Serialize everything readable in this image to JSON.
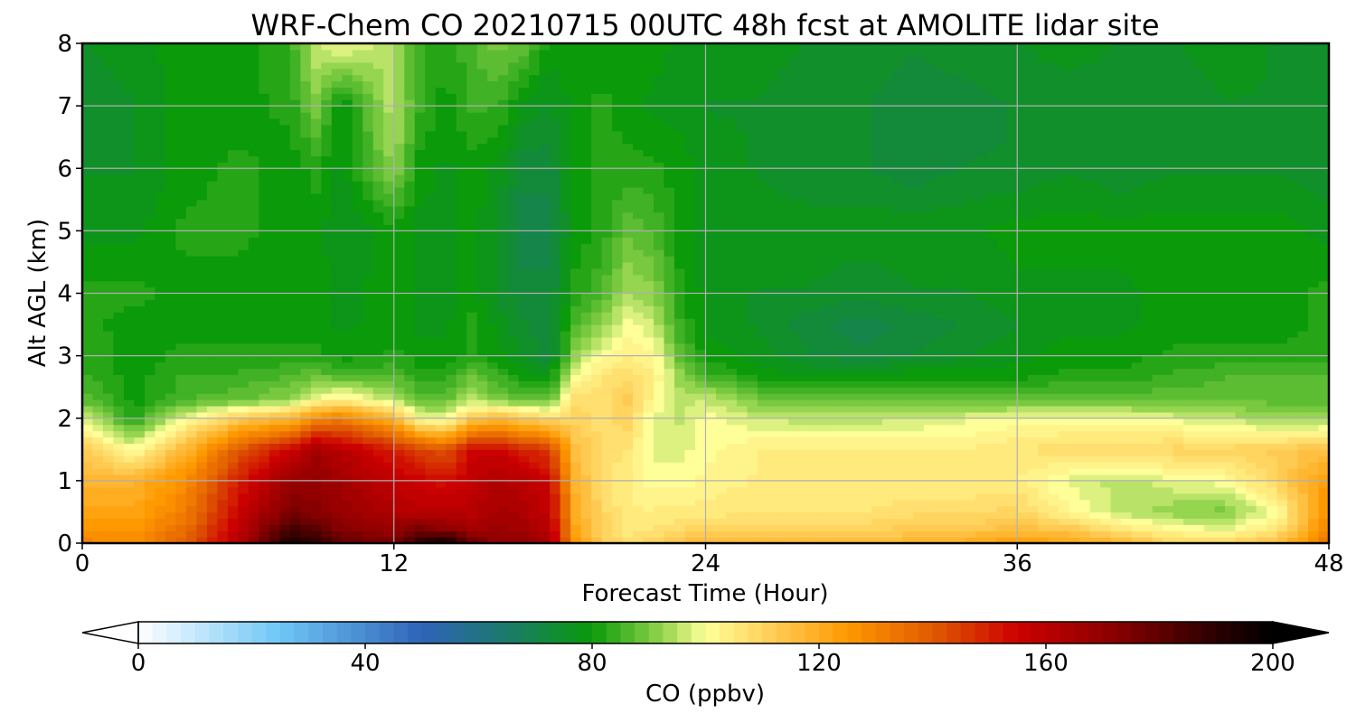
{
  "chart_data": {
    "type": "heatmap",
    "title": "WRF-Chem CO  20210715 00UTC 48h fcst at AMOLITE lidar site",
    "xlabel": "Forecast Time (Hour)",
    "ylabel": "Alt AGL (km)",
    "xlim": [
      0,
      48
    ],
    "ylim": [
      0,
      8
    ],
    "xticks": [
      0,
      12,
      24,
      36,
      48
    ],
    "yticks": [
      0,
      1,
      2,
      3,
      4,
      5,
      6,
      7,
      8
    ],
    "grid": true,
    "colorbar": {
      "label": "CO  (ppbv)",
      "ticks": [
        0,
        40,
        80,
        120,
        160,
        200
      ],
      "range": [
        0,
        200
      ],
      "extend": "both",
      "orientation": "horizontal",
      "stops": [
        {
          "v": 0,
          "c": "#ffffff"
        },
        {
          "v": 25,
          "c": "#6ec6f5"
        },
        {
          "v": 50,
          "c": "#2f63b8"
        },
        {
          "v": 65,
          "c": "#1b7a6a"
        },
        {
          "v": 80,
          "c": "#0a9a0a"
        },
        {
          "v": 92,
          "c": "#8ed24a"
        },
        {
          "v": 100,
          "c": "#ffff99"
        },
        {
          "v": 112,
          "c": "#ffcc55"
        },
        {
          "v": 125,
          "c": "#ff9900"
        },
        {
          "v": 140,
          "c": "#e05a00"
        },
        {
          "v": 155,
          "c": "#cc0000"
        },
        {
          "v": 172,
          "c": "#8a0000"
        },
        {
          "v": 190,
          "c": "#2a0000"
        },
        {
          "v": 200,
          "c": "#000000"
        }
      ]
    },
    "z_grid": {
      "x": [
        0,
        2,
        4,
        6,
        8,
        9,
        10,
        12,
        13,
        14,
        15,
        16,
        17,
        18,
        19,
        20,
        21,
        22,
        23,
        24,
        26,
        28,
        30,
        32,
        34,
        36,
        38,
        40,
        42,
        44,
        46,
        48
      ],
      "y": [
        0,
        0.25,
        0.5,
        1,
        1.5,
        2,
        2.3,
        2.7,
        3,
        3.5,
        4,
        5,
        6,
        7,
        8
      ],
      "values": [
        [
          130,
          128,
          140,
          160,
          195,
          190,
          180,
          175,
          190,
          198,
          180,
          170,
          170,
          165,
          125,
          112,
          108,
          110,
          115,
          115,
          115,
          115,
          115,
          118,
          120,
          125,
          122,
          118,
          110,
          110,
          115,
          135
        ],
        [
          125,
          125,
          135,
          158,
          185,
          180,
          172,
          168,
          175,
          170,
          165,
          168,
          165,
          160,
          122,
          110,
          105,
          106,
          108,
          110,
          110,
          110,
          110,
          112,
          112,
          115,
          112,
          105,
          100,
          98,
          105,
          130
        ],
        [
          122,
          122,
          132,
          155,
          175,
          172,
          168,
          162,
          160,
          160,
          160,
          165,
          162,
          158,
          120,
          110,
          104,
          104,
          105,
          105,
          106,
          106,
          106,
          108,
          108,
          110,
          102,
          95,
          92,
          90,
          100,
          128
        ],
        [
          118,
          118,
          128,
          150,
          168,
          170,
          165,
          158,
          155,
          152,
          158,
          162,
          160,
          155,
          118,
          108,
          104,
          100,
          100,
          102,
          104,
          104,
          104,
          104,
          104,
          104,
          98,
          95,
          98,
          100,
          110,
          125
        ],
        [
          112,
          100,
          118,
          140,
          155,
          165,
          160,
          150,
          145,
          140,
          155,
          155,
          150,
          145,
          115,
          108,
          106,
          98,
          98,
          100,
          104,
          104,
          104,
          104,
          104,
          106,
          108,
          108,
          110,
          110,
          112,
          115
        ],
        [
          98,
          82,
          100,
          112,
          118,
          128,
          132,
          118,
          100,
          98,
          112,
          118,
          112,
          108,
          110,
          108,
          110,
          98,
          96,
          100,
          96,
          95,
          95,
          96,
          98,
          100,
          100,
          100,
          98,
          96,
          92,
          92
        ],
        [
          88,
          80,
          86,
          88,
          92,
          100,
          104,
          95,
          88,
          88,
          95,
          90,
          88,
          88,
          108,
          108,
          112,
          102,
          95,
          96,
          90,
          88,
          88,
          88,
          88,
          88,
          88,
          88,
          88,
          88,
          88,
          88
        ],
        [
          84,
          80,
          84,
          84,
          86,
          88,
          86,
          86,
          82,
          82,
          88,
          84,
          80,
          78,
          100,
          106,
          108,
          104,
          92,
          85,
          80,
          78,
          78,
          80,
          80,
          80,
          82,
          82,
          84,
          86,
          86,
          86
        ],
        [
          84,
          80,
          82,
          82,
          82,
          82,
          80,
          82,
          80,
          80,
          82,
          80,
          76,
          72,
          92,
          100,
          104,
          102,
          88,
          80,
          78,
          74,
          72,
          74,
          76,
          78,
          80,
          80,
          82,
          82,
          82,
          82
        ],
        [
          82,
          80,
          80,
          80,
          80,
          80,
          78,
          80,
          78,
          78,
          82,
          78,
          74,
          72,
          86,
          92,
          100,
          96,
          84,
          78,
          76,
          72,
          70,
          72,
          74,
          76,
          78,
          78,
          80,
          80,
          80,
          82
        ],
        [
          82,
          82,
          80,
          80,
          80,
          80,
          78,
          80,
          78,
          78,
          80,
          76,
          72,
          72,
          82,
          86,
          94,
          92,
          82,
          78,
          76,
          76,
          74,
          76,
          76,
          78,
          78,
          78,
          80,
          80,
          80,
          82
        ],
        [
          78,
          78,
          82,
          82,
          80,
          80,
          76,
          80,
          78,
          78,
          80,
          76,
          70,
          70,
          80,
          82,
          88,
          86,
          80,
          78,
          78,
          78,
          78,
          78,
          78,
          80,
          80,
          80,
          80,
          80,
          80,
          78
        ],
        [
          76,
          76,
          80,
          82,
          80,
          82,
          78,
          92,
          80,
          78,
          80,
          78,
          72,
          72,
          80,
          82,
          82,
          82,
          80,
          78,
          76,
          74,
          74,
          72,
          74,
          74,
          76,
          74,
          76,
          76,
          76,
          74
        ],
        [
          74,
          76,
          80,
          80,
          82,
          90,
          78,
          96,
          84,
          80,
          84,
          84,
          78,
          76,
          80,
          82,
          80,
          78,
          78,
          76,
          76,
          74,
          74,
          72,
          72,
          74,
          74,
          74,
          74,
          76,
          76,
          76
        ],
        [
          76,
          78,
          80,
          80,
          84,
          96,
          100,
          94,
          84,
          82,
          86,
          90,
          88,
          80,
          80,
          80,
          80,
          80,
          78,
          78,
          78,
          76,
          76,
          74,
          76,
          76,
          78,
          76,
          76,
          78,
          76,
          76
        ]
      ]
    }
  }
}
